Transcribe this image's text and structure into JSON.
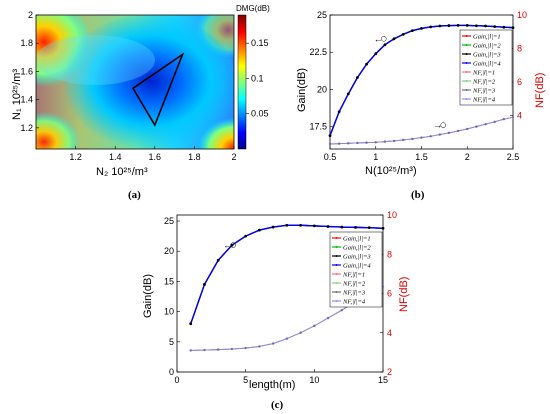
{
  "panels": {
    "a": {
      "caption": "(a)"
    },
    "b": {
      "caption": "(b)"
    },
    "c": {
      "caption": "(c)"
    }
  },
  "chart_data": [
    {
      "id": "a",
      "type": "heatmap",
      "title": "",
      "xlabel": "N₂ 10²⁵/m³",
      "ylabel": "N₁ 10²⁵/m³",
      "xlim": [
        1.0,
        2.0
      ],
      "ylim": [
        1.05,
        2.0
      ],
      "xticks": [
        "1.2",
        "1.4",
        "1.6",
        "1.8",
        "2"
      ],
      "yticks": [
        "1.2",
        "1.4",
        "1.6",
        "1.8",
        "2"
      ],
      "colorbar_label": "DMG(dB)",
      "colorbar_range": [
        0,
        0.19
      ],
      "colorbar_ticks": [
        "0.05",
        "0.1",
        "0.15"
      ],
      "colormap": "jet",
      "minimum_region": [
        [
          1.49,
          1.48
        ],
        [
          1.74,
          1.72
        ],
        [
          1.6,
          1.22
        ]
      ],
      "minimum_region_color": "#000000"
    },
    {
      "id": "b",
      "type": "line",
      "title": "",
      "xlabel": "N(10²⁵/m³)",
      "ylabel": "Gain(dB)",
      "y2label": "NF(dB)",
      "xlim": [
        0.5,
        2.5
      ],
      "ylim": [
        16,
        25
      ],
      "y2lim": [
        2,
        10
      ],
      "xticks": [
        "0.5",
        "1",
        "1.5",
        "2",
        "2.5"
      ],
      "yticks": [
        "17.5",
        "20",
        "22.5",
        "25"
      ],
      "y2ticks": [
        "4",
        "6",
        "8",
        "10"
      ],
      "legend_position": "top-right",
      "legend": [
        "Gain,|l|=1",
        "Gain,|l|=2",
        "Gain,|l|=3",
        "Gain,|l|=4",
        "NF,|l|=1",
        "NF,|l|=2",
        "NF,|l|=3",
        "NF,|l|=4"
      ],
      "legend_colors": [
        "#ff0000",
        "#00c000",
        "#000000",
        "#0000ff",
        "#ff7070",
        "#80d080",
        "#707070",
        "#9090ff"
      ],
      "x": [
        0.5,
        0.6,
        0.7,
        0.8,
        0.9,
        1.0,
        1.1,
        1.2,
        1.3,
        1.4,
        1.5,
        1.6,
        1.7,
        1.8,
        1.9,
        2.0,
        2.1,
        2.2,
        2.3,
        2.4,
        2.5
      ],
      "series": [
        {
          "axis": "left",
          "values": [
            16.9,
            18.5,
            19.7,
            20.8,
            21.7,
            22.4,
            23.0,
            23.4,
            23.7,
            23.95,
            24.1,
            24.2,
            24.26,
            24.29,
            24.3,
            24.3,
            24.28,
            24.26,
            24.22,
            24.18,
            24.15
          ]
        },
        {
          "axis": "right",
          "values": [
            2.3,
            2.32,
            2.34,
            2.36,
            2.38,
            2.4,
            2.44,
            2.48,
            2.54,
            2.6,
            2.68,
            2.76,
            2.86,
            2.96,
            3.08,
            3.2,
            3.34,
            3.48,
            3.62,
            3.78,
            3.9
          ]
        }
      ],
      "arrows": [
        {
          "text": "←",
          "at": [
            1.0,
            23.2
          ]
        },
        {
          "text": "→",
          "at": [
            1.65,
            17.4
          ]
        }
      ]
    },
    {
      "id": "c",
      "type": "line",
      "title": "",
      "xlabel": "length(m)",
      "ylabel": "Gain(dB)",
      "y2label": "NF(dB)",
      "xlim": [
        0,
        15
      ],
      "ylim": [
        0,
        26
      ],
      "y2lim": [
        2,
        10
      ],
      "xticks": [
        "0",
        "5",
        "10",
        "15"
      ],
      "yticks": [
        "0",
        "5",
        "10",
        "15",
        "20",
        "25"
      ],
      "y2ticks": [
        "2",
        "4",
        "6",
        "8",
        "10"
      ],
      "legend_position": "top-right",
      "legend": [
        "Gain,|l|=1",
        "Gain,|l|=2",
        "Gain,|l|=3",
        "Gain,|l|=4",
        "NF,|l|=1",
        "NF,|l|=2",
        "NF,|l|=3",
        "NF,|l|=4"
      ],
      "legend_colors": [
        "#ff0000",
        "#00c000",
        "#000000",
        "#0000ff",
        "#ff7070",
        "#80d080",
        "#707070",
        "#9090ff"
      ],
      "x": [
        1,
        2,
        3,
        4,
        5,
        6,
        7,
        8,
        9,
        10,
        11,
        12,
        13,
        14,
        15
      ],
      "series": [
        {
          "axis": "left",
          "values": [
            8.0,
            14.5,
            18.5,
            21.0,
            22.5,
            23.5,
            24.0,
            24.3,
            24.3,
            24.2,
            24.1,
            24.0,
            23.95,
            23.9,
            23.8
          ]
        },
        {
          "axis": "right",
          "values": [
            3.1,
            3.12,
            3.14,
            3.17,
            3.22,
            3.3,
            3.45,
            3.7,
            4.0,
            4.35,
            4.75,
            5.15,
            5.6,
            6.0,
            6.35
          ]
        }
      ],
      "arrows": [
        {
          "text": "←",
          "at": [
            3.5,
            20.5
          ]
        },
        {
          "text": "→",
          "at": [
            12.5,
            11.5
          ]
        }
      ]
    }
  ]
}
